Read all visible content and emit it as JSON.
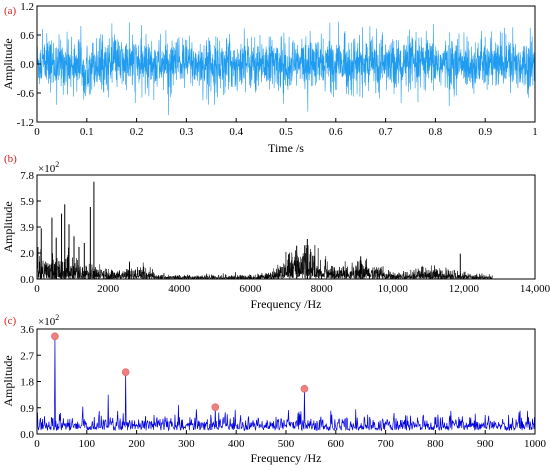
{
  "chart_data": [
    {
      "panel": "(a)",
      "type": "line",
      "xlabel": "Time /s",
      "ylabel": "Amplitude",
      "xlim": [
        0,
        1
      ],
      "ylim": [
        -1.2,
        1.2
      ],
      "xticks": [
        "0",
        "0.1",
        "0.2",
        "0.3",
        "0.4",
        "0.5",
        "0.6",
        "0.7",
        "0.8",
        "0.9",
        "1"
      ],
      "yticks": [
        "-1.2",
        "-0.6",
        "0.0",
        "0.6",
        "1.2"
      ],
      "line_color": "#1f9bef",
      "grid": false,
      "signal": {
        "kind": "noise-like vibration signal",
        "typical_amplitude": 0.35,
        "peak_amplitude": 0.85
      }
    },
    {
      "panel": "(b)",
      "type": "line",
      "xlabel": "Frequency /Hz",
      "ylabel": "Amplitude",
      "exponent_label": "×10",
      "exponent_power": "2",
      "xlim": [
        0,
        14000
      ],
      "ylim": [
        0,
        7.8
      ],
      "xticks": [
        "0",
        "2000",
        "4000",
        "6000",
        "8000",
        "10,000",
        "12,000",
        "14,000"
      ],
      "yticks": [
        "0.0",
        "2.0",
        "3.9",
        "5.9",
        "7.8"
      ],
      "line_color": "#000000",
      "grid": false,
      "peaks": [
        {
          "x": 120,
          "y": 3.8
        },
        {
          "x": 420,
          "y": 4.6
        },
        {
          "x": 540,
          "y": 3.1
        },
        {
          "x": 690,
          "y": 4.9
        },
        {
          "x": 780,
          "y": 5.6
        },
        {
          "x": 900,
          "y": 4.1
        },
        {
          "x": 1040,
          "y": 3.2
        },
        {
          "x": 1180,
          "y": 2.4
        },
        {
          "x": 1330,
          "y": 2.7
        },
        {
          "x": 1500,
          "y": 5.4
        },
        {
          "x": 1600,
          "y": 7.3
        },
        {
          "x": 2600,
          "y": 1.3
        },
        {
          "x": 3000,
          "y": 0.9
        },
        {
          "x": 7300,
          "y": 2.5
        },
        {
          "x": 7600,
          "y": 3.0
        },
        {
          "x": 9100,
          "y": 1.7
        },
        {
          "x": 11900,
          "y": 1.9
        }
      ],
      "spectrum_end_hz": 12800
    },
    {
      "panel": "(c)",
      "type": "line",
      "xlabel": "Frequency /Hz",
      "ylabel": "Amplitude",
      "exponent_label": "×10",
      "exponent_power": "2",
      "xlim": [
        0,
        1000
      ],
      "ylim": [
        0,
        3.6
      ],
      "xticks": [
        "0",
        "100",
        "200",
        "300",
        "400",
        "500",
        "600",
        "700",
        "800",
        "900",
        "1000"
      ],
      "yticks": [
        "0.0",
        "0.9",
        "1.8",
        "2.7",
        "3.6"
      ],
      "line_color": "#0000e0",
      "marker_color": "#f08080",
      "grid": false,
      "marked_peaks": [
        {
          "x": 36,
          "y": 3.35
        },
        {
          "x": 178,
          "y": 2.12
        },
        {
          "x": 358,
          "y": 0.92
        },
        {
          "x": 537,
          "y": 1.55
        }
      ],
      "other_peaks": [
        {
          "x": 143,
          "y": 1.35
        },
        {
          "x": 284,
          "y": 1.0
        },
        {
          "x": 320,
          "y": 0.85
        },
        {
          "x": 505,
          "y": 0.82
        },
        {
          "x": 590,
          "y": 0.8
        },
        {
          "x": 640,
          "y": 0.85
        },
        {
          "x": 717,
          "y": 0.72
        },
        {
          "x": 880,
          "y": 0.7
        },
        {
          "x": 970,
          "y": 0.8
        }
      ]
    }
  ]
}
